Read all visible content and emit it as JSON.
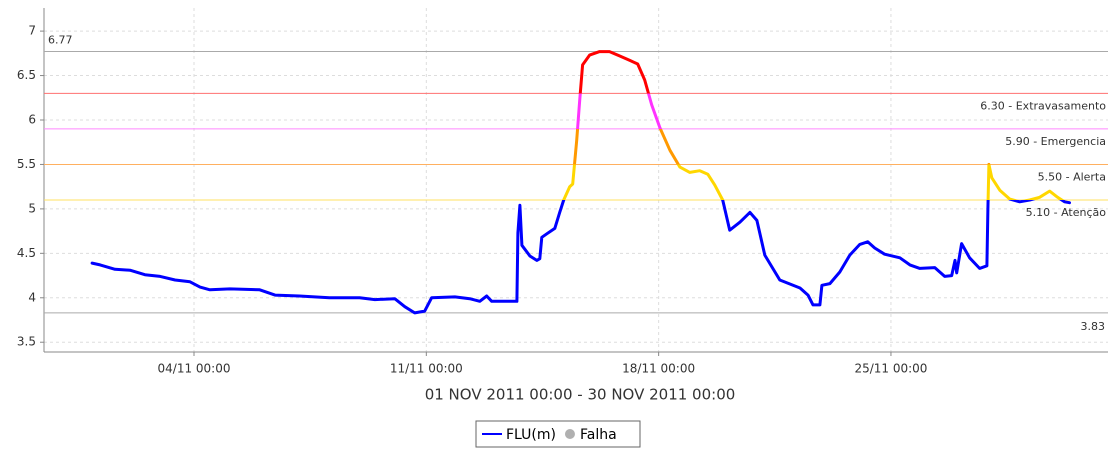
{
  "chart_data": {
    "type": "line",
    "x_label": "01 NOV 2011 00:00 - 30 NOV 2011 00:00",
    "xlim": [
      -0.52,
      31.54
    ],
    "ylim": [
      3.39,
      7.26
    ],
    "xticks": [
      {
        "value": 4,
        "label": "04/11 00:00"
      },
      {
        "value": 11,
        "label": "11/11 00:00"
      },
      {
        "value": 18,
        "label": "18/11 00:00"
      },
      {
        "value": 25,
        "label": "25/11 00:00"
      }
    ],
    "yticks": [
      3.5,
      4.0,
      4.5,
      5.0,
      5.5,
      6.0,
      6.5,
      7.0
    ],
    "grid": true,
    "thresholds": [
      {
        "value": 6.3,
        "label": "6.30 - Extravasamento",
        "color": "#ff7070",
        "data_color": "#ff0000"
      },
      {
        "value": 5.9,
        "label": "5.90 - Emergencia",
        "color": "#ff88ff",
        "data_color": "#ff33ff"
      },
      {
        "value": 5.5,
        "label": "5.50 - Alerta",
        "color": "#ffb060",
        "data_color": "#ff9900"
      },
      {
        "value": 5.1,
        "label": "5.10 - Atenção",
        "color": "#ffe060",
        "data_color": "#ffd700"
      }
    ],
    "extremes": [
      {
        "value": 6.77,
        "color": "#aaaaaa",
        "label_side": "left"
      },
      {
        "value": 3.83,
        "color": "#aaaaaa",
        "label_side": "right"
      }
    ],
    "series": [
      {
        "name": "FLU(m)",
        "color": "#0000ff",
        "x": [
          0.93,
          1.17,
          1.62,
          2.07,
          2.52,
          2.98,
          3.43,
          3.88,
          4.18,
          4.48,
          5.08,
          5.98,
          6.44,
          7.18,
          8.08,
          8.99,
          9.45,
          10.05,
          10.35,
          10.65,
          10.95,
          11.16,
          11.86,
          12.31,
          12.61,
          12.82,
          12.97,
          13.73,
          13.76,
          13.82,
          13.88,
          14.12,
          14.33,
          14.42,
          14.48,
          14.63,
          14.87,
          15.02,
          15.14,
          15.32,
          15.41,
          15.53,
          15.62,
          15.71,
          15.92,
          16.22,
          16.52,
          16.83,
          17.13,
          17.37,
          17.58,
          17.79,
          18.04,
          18.34,
          18.64,
          18.94,
          19.24,
          19.48,
          19.69,
          19.93,
          20.14,
          20.45,
          20.75,
          20.96,
          21.2,
          21.65,
          22.26,
          22.5,
          22.65,
          22.86,
          22.92,
          23.16,
          23.46,
          23.76,
          24.06,
          24.3,
          24.51,
          24.81,
          25.27,
          25.57,
          25.87,
          26.32,
          26.62,
          26.83,
          26.93,
          26.98,
          27.13,
          27.37,
          27.67,
          27.89,
          27.92,
          27.95,
          28.04,
          28.28,
          28.58,
          28.88,
          29.18,
          29.48,
          29.78,
          30.02,
          30.23,
          30.38
        ],
        "values": [
          4.39,
          4.37,
          4.32,
          4.31,
          4.26,
          4.24,
          4.2,
          4.18,
          4.12,
          4.09,
          4.1,
          4.09,
          4.03,
          4.02,
          4.0,
          4.0,
          3.98,
          3.99,
          3.9,
          3.83,
          3.85,
          4.0,
          4.01,
          3.99,
          3.96,
          4.02,
          3.96,
          3.96,
          4.73,
          5.04,
          4.59,
          4.47,
          4.42,
          4.44,
          4.68,
          4.72,
          4.78,
          4.96,
          5.1,
          5.25,
          5.28,
          5.77,
          6.22,
          6.62,
          6.73,
          6.77,
          6.77,
          6.72,
          6.67,
          6.63,
          6.45,
          6.17,
          5.91,
          5.66,
          5.47,
          5.41,
          5.43,
          5.39,
          5.27,
          5.1,
          4.76,
          4.85,
          4.96,
          4.87,
          4.48,
          4.2,
          4.11,
          4.03,
          3.92,
          3.92,
          4.14,
          4.16,
          4.29,
          4.48,
          4.6,
          4.63,
          4.56,
          4.49,
          4.45,
          4.37,
          4.33,
          4.34,
          4.24,
          4.25,
          4.42,
          4.28,
          4.61,
          4.45,
          4.33,
          4.36,
          5.0,
          5.5,
          5.35,
          5.21,
          5.11,
          5.08,
          5.1,
          5.13,
          5.2,
          5.13,
          5.08,
          5.07
        ]
      },
      {
        "name": "Falha",
        "color": "#b0b0b0",
        "marker": "circle",
        "x": [],
        "values": []
      }
    ]
  }
}
